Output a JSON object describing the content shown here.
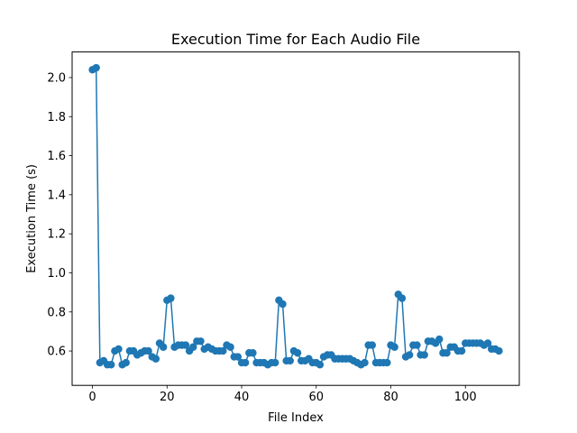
{
  "chart_data": {
    "type": "line",
    "title": "Execution Time for Each Audio File",
    "xlabel": "File Index",
    "ylabel": "Execution Time (s)",
    "xlim": [
      -5.45,
      114.45
    ],
    "ylim": [
      0.424,
      2.131
    ],
    "xticks": [
      0,
      20,
      40,
      60,
      80,
      100
    ],
    "xtick_labels": [
      "0",
      "20",
      "40",
      "60",
      "80",
      "100"
    ],
    "yticks": [
      0.6,
      0.8,
      1.0,
      1.2,
      1.4,
      1.6,
      1.8,
      2.0
    ],
    "ytick_labels": [
      "0.6",
      "0.8",
      "1.0",
      "1.2",
      "1.4",
      "1.6",
      "1.8",
      "2.0"
    ],
    "grid": false,
    "marker": "circle",
    "series": [
      {
        "color": "#1f77b4",
        "x": [
          0,
          1,
          2,
          3,
          4,
          5,
          6,
          7,
          8,
          9,
          10,
          11,
          12,
          13,
          14,
          15,
          16,
          17,
          18,
          19,
          20,
          21,
          22,
          23,
          24,
          25,
          26,
          27,
          28,
          29,
          30,
          31,
          32,
          33,
          34,
          35,
          36,
          37,
          38,
          39,
          40,
          41,
          42,
          43,
          44,
          45,
          46,
          47,
          48,
          49,
          50,
          51,
          52,
          53,
          54,
          55,
          56,
          57,
          58,
          59,
          60,
          61,
          62,
          63,
          64,
          65,
          66,
          67,
          68,
          69,
          70,
          71,
          72,
          73,
          74,
          75,
          76,
          77,
          78,
          79,
          80,
          81,
          82,
          83,
          84,
          85,
          86,
          87,
          88,
          89,
          90,
          91,
          92,
          93,
          94,
          95,
          96,
          97,
          98,
          99,
          100,
          101,
          102,
          103,
          104,
          105,
          106,
          107,
          108,
          109
        ],
        "y": [
          2.04,
          2.05,
          0.54,
          0.55,
          0.53,
          0.53,
          0.6,
          0.61,
          0.53,
          0.54,
          0.6,
          0.6,
          0.58,
          0.59,
          0.6,
          0.6,
          0.57,
          0.56,
          0.64,
          0.62,
          0.86,
          0.87,
          0.62,
          0.63,
          0.63,
          0.63,
          0.6,
          0.62,
          0.65,
          0.65,
          0.61,
          0.62,
          0.61,
          0.6,
          0.6,
          0.6,
          0.63,
          0.62,
          0.57,
          0.57,
          0.54,
          0.54,
          0.59,
          0.59,
          0.54,
          0.54,
          0.54,
          0.53,
          0.54,
          0.54,
          0.86,
          0.84,
          0.55,
          0.55,
          0.6,
          0.59,
          0.55,
          0.55,
          0.56,
          0.54,
          0.54,
          0.53,
          0.57,
          0.58,
          0.58,
          0.56,
          0.56,
          0.56,
          0.56,
          0.56,
          0.55,
          0.54,
          0.53,
          0.54,
          0.63,
          0.63,
          0.54,
          0.54,
          0.54,
          0.54,
          0.63,
          0.62,
          0.89,
          0.87,
          0.57,
          0.58,
          0.63,
          0.63,
          0.58,
          0.58,
          0.65,
          0.65,
          0.64,
          0.66,
          0.59,
          0.59,
          0.62,
          0.62,
          0.6,
          0.6,
          0.64,
          0.64,
          0.64,
          0.64,
          0.64,
          0.63,
          0.64,
          0.61,
          0.61,
          0.6
        ]
      }
    ]
  }
}
